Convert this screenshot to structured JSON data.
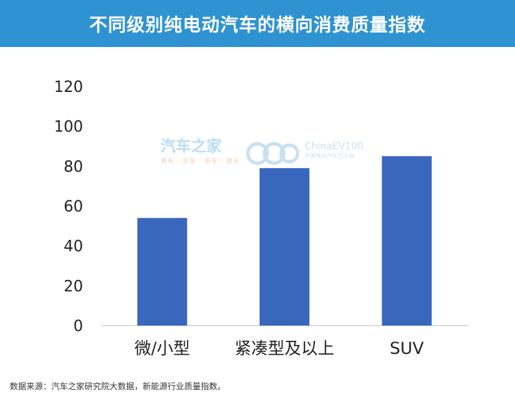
{
  "header": {
    "title": "不同级别纯电动汽车的横向消费质量指数"
  },
  "watermark": {
    "brand": "汽车之家",
    "tagline": "看车 · 买车 · 用车 · 换车",
    "partner": "ChinaEV100",
    "partner_sub": "中国电动汽车百人会"
  },
  "source": "数据来源：汽车之家研究院大数据，新能源行业质量指数。",
  "colors": {
    "bar": "#3a67be",
    "title_bg": "#2f93d2"
  },
  "chart_data": {
    "type": "bar",
    "title": "不同级别纯电动汽车的横向消费质量指数",
    "categories": [
      "微/小型",
      "紧凑型及以上",
      "SUV"
    ],
    "values": [
      54,
      79,
      85
    ],
    "ylim": [
      0,
      120
    ],
    "yticks": [
      0,
      20,
      40,
      60,
      80,
      100,
      120
    ],
    "xlabel": "",
    "ylabel": "",
    "grid": false,
    "legend": "none"
  }
}
